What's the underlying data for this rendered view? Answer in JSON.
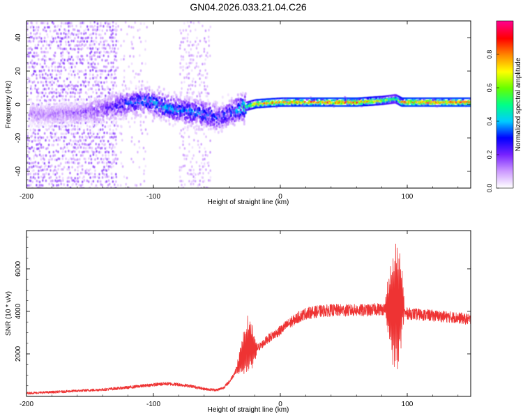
{
  "figure_title": "GN04.2026.033.21.04.C26",
  "colors": {
    "snr_line": "#ee3333",
    "frame": "#000000",
    "colormap_stops": [
      "#ffffff",
      "#cc99ff",
      "#7722ff",
      "#0000ff",
      "#00ccff",
      "#00ff88",
      "#66ff00",
      "#ffff00",
      "#ff8800",
      "#ff0000",
      "#ff0088"
    ]
  },
  "chart_data": [
    {
      "type": "heatmap",
      "name": "spectrogram",
      "title": "GN04.2026.033.21.04.C26",
      "xlabel": "Height of straight line (km)",
      "ylabel": "Frequency (Hz)",
      "xlim": [
        -200,
        150
      ],
      "ylim": [
        -50,
        50
      ],
      "xticks": [
        -200,
        -100,
        0,
        100
      ],
      "yticks": [
        -40,
        -20,
        0,
        20,
        40
      ],
      "colorbar": {
        "label": "Normalized spectral amplitude",
        "range": [
          0,
          1
        ],
        "ticks": [
          "0.0",
          "0.2",
          "0.4",
          "0.6",
          "0.8"
        ]
      },
      "ridge": {
        "x": [
          -185,
          -160,
          -140,
          -120,
          -105,
          -90,
          -75,
          -60,
          -50,
          -40,
          -30,
          -20,
          0,
          20,
          60,
          80,
          90,
          95,
          100,
          150
        ],
        "frequency_hz": [
          -6,
          -5,
          -3,
          1,
          2,
          -2,
          -4,
          -6,
          -8,
          -5,
          -2,
          0,
          1,
          1,
          1,
          2,
          3,
          1,
          1,
          1
        ],
        "peak_amplitude": [
          0.15,
          0.18,
          0.22,
          0.35,
          0.42,
          0.45,
          0.4,
          0.4,
          0.35,
          0.35,
          0.55,
          0.9,
          0.9,
          0.95,
          0.95,
          0.75,
          0.6,
          0.9,
          0.95,
          0.95
        ]
      },
      "noise_bands": [
        {
          "x_range": [
            -200,
            -130
          ],
          "density": "high"
        },
        {
          "x_range": [
            -130,
            -105
          ],
          "density": "low"
        },
        {
          "x_range": [
            -80,
            -55
          ],
          "density": "medium"
        }
      ]
    },
    {
      "type": "line",
      "name": "snr",
      "xlabel": "Height of straight line (km)",
      "ylabel": "SNR (10 * v/v)",
      "xlim": [
        -200,
        150
      ],
      "ylim": [
        0,
        7800
      ],
      "xticks": [
        -200,
        -100,
        0,
        100
      ],
      "yticks": [
        2000,
        4000,
        6000
      ],
      "series": [
        {
          "name": "SNR",
          "x": [
            -200,
            -180,
            -160,
            -140,
            -120,
            -100,
            -90,
            -80,
            -70,
            -60,
            -50,
            -45,
            -40,
            -35,
            -30,
            -25,
            -20,
            -15,
            -10,
            -5,
            0,
            5,
            10,
            15,
            20,
            25,
            30,
            40,
            50,
            60,
            70,
            75,
            80,
            85,
            88,
            90,
            92,
            95,
            97,
            98,
            100,
            110,
            120,
            130,
            140,
            150
          ],
          "y": [
            150,
            200,
            260,
            320,
            420,
            550,
            600,
            560,
            480,
            350,
            300,
            400,
            700,
            1200,
            1900,
            2500,
            2200,
            2400,
            2700,
            2900,
            3100,
            3350,
            3550,
            3750,
            3900,
            3950,
            4000,
            4050,
            4050,
            4050,
            4050,
            4100,
            4100,
            4150,
            4200,
            4250,
            4300,
            4400,
            4200,
            3900,
            3900,
            3850,
            3800,
            3750,
            3700,
            3600
          ],
          "oscillations": [
            {
              "x_range": [
                -35,
                -18
              ],
              "amplitude": 1500
            },
            {
              "x_range": [
                82,
                98
              ],
              "amplitude": 3600
            }
          ]
        }
      ]
    }
  ]
}
